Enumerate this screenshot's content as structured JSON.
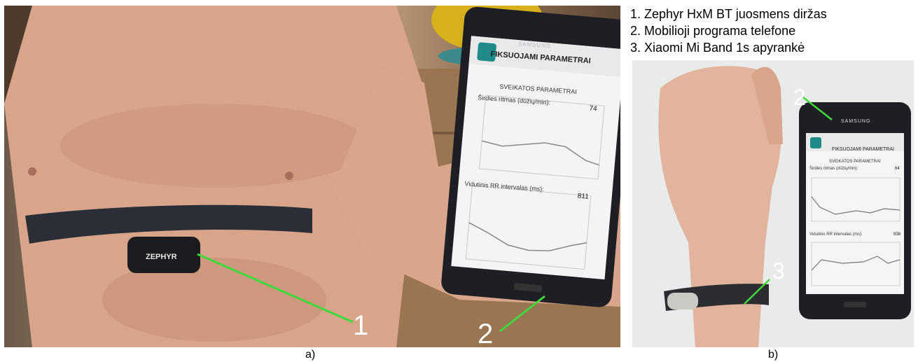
{
  "legend": {
    "item1": "1. Zephyr HxM BT juosmens diržas",
    "item2": "2. Mobilioji programa telefone",
    "item3": "3. Xiaomi Mi Band 1s apyrankė"
  },
  "captions": {
    "a": "a)",
    "b": "b)"
  },
  "panel_a": {
    "label_1": "1",
    "label_2": "2",
    "strap_brand": "ZEPHYR",
    "phone_brand": "SAMSUNG",
    "screen": {
      "title": "FIKSUOJAMI PARAMETRAI",
      "section": "SVEIKATOS PARAMETRAI",
      "hr_label": "Širdies ritmas (dūžių/min):",
      "hr_value": "74",
      "rr_label": "Vidutinis RR intervalas (ms):",
      "rr_value": "811"
    }
  },
  "panel_b": {
    "label_2": "2",
    "label_3": "3",
    "phone_brand": "SAMSUNG",
    "screen": {
      "title": "FIKSUOJAMI PARAMETRAI",
      "section": "SVEIKATOS PARAMETRAI",
      "hr_label": "Širdies ritmas (dūžių/min):",
      "hr_value": "64",
      "rr_label": "Vidutinis RR intervalas (ms):",
      "rr_value": "938"
    }
  },
  "colors": {
    "pointer_line": "#3fd93a",
    "label_text": "#ffffff",
    "strap": "#2b2e36",
    "phone_body": "#1e1f24",
    "skin": "#d9a68d"
  }
}
